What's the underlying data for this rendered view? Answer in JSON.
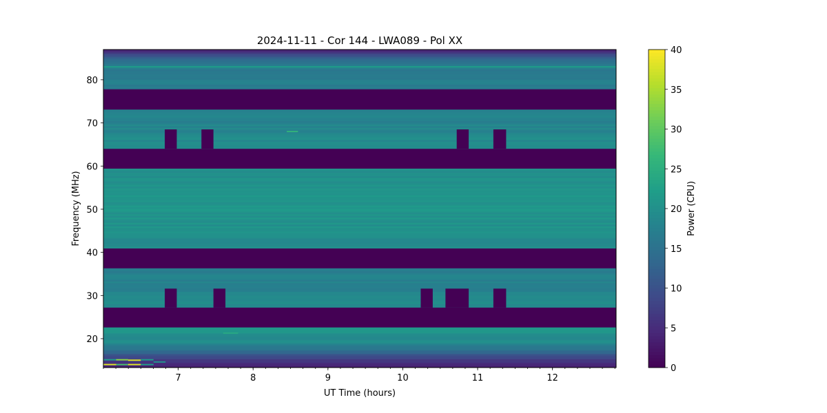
{
  "chart_data": {
    "type": "heatmap",
    "title": "2024-11-11 - Cor 144 - LWA089 - Pol XX",
    "xlabel": "UT Time (hours)",
    "ylabel": "Frequency (MHz)",
    "xlim": [
      6.0,
      12.85
    ],
    "ylim": [
      13.3,
      87.0
    ],
    "xticks": [
      7,
      8,
      9,
      10,
      11,
      12
    ],
    "xtick_labels": [
      "7",
      "8",
      "9",
      "10",
      "11",
      "12"
    ],
    "yticks": [
      20,
      30,
      40,
      50,
      60,
      70,
      80
    ],
    "ytick_labels": [
      "20",
      "30",
      "40",
      "50",
      "60",
      "70",
      "80"
    ],
    "colormap": "viridis",
    "colorbar": {
      "label": "Power (CPU)",
      "range": [
        0,
        40
      ],
      "ticks": [
        0,
        5,
        10,
        15,
        20,
        25,
        30,
        35,
        40
      ],
      "tick_labels": [
        "0",
        "5",
        "10",
        "15",
        "20",
        "25",
        "30",
        "35",
        "40"
      ]
    },
    "power_profile": [
      {
        "freq": 13.3,
        "power": 3
      },
      {
        "freq": 15.0,
        "power": 6
      },
      {
        "freq": 17.0,
        "power": 14
      },
      {
        "freq": 19.0,
        "power": 19
      },
      {
        "freq": 22.6,
        "power": 21
      },
      {
        "freq": 27.2,
        "power": 20
      },
      {
        "freq": 31.0,
        "power": 18
      },
      {
        "freq": 36.3,
        "power": 17
      },
      {
        "freq": 41.0,
        "power": 19
      },
      {
        "freq": 50.0,
        "power": 21
      },
      {
        "freq": 59.4,
        "power": 20
      },
      {
        "freq": 64.0,
        "power": 20
      },
      {
        "freq": 70.0,
        "power": 18
      },
      {
        "freq": 73.1,
        "power": 18
      },
      {
        "freq": 77.8,
        "power": 17
      },
      {
        "freq": 82.0,
        "power": 17
      },
      {
        "freq": 84.5,
        "power": 15
      },
      {
        "freq": 86.0,
        "power": 8
      },
      {
        "freq": 87.0,
        "power": 4
      }
    ],
    "masked_regions": [
      {
        "t0": 6.0,
        "t1": 12.85,
        "f0": 73.1,
        "f1": 77.8,
        "power": 0
      },
      {
        "t0": 6.0,
        "t1": 12.85,
        "f0": 59.4,
        "f1": 64.0,
        "power": 0
      },
      {
        "t0": 6.0,
        "t1": 12.85,
        "f0": 36.3,
        "f1": 40.9,
        "power": 0
      },
      {
        "t0": 6.0,
        "t1": 12.85,
        "f0": 22.6,
        "f1": 27.2,
        "power": 0
      },
      {
        "t0": 6.82,
        "t1": 6.98,
        "f0": 64.0,
        "f1": 68.5,
        "power": 0
      },
      {
        "t0": 7.31,
        "t1": 7.47,
        "f0": 64.0,
        "f1": 68.5,
        "power": 0
      },
      {
        "t0": 10.72,
        "t1": 10.88,
        "f0": 64.0,
        "f1": 68.5,
        "power": 0
      },
      {
        "t0": 11.21,
        "t1": 11.38,
        "f0": 64.0,
        "f1": 68.5,
        "power": 0
      },
      {
        "t0": 6.82,
        "t1": 6.98,
        "f0": 27.2,
        "f1": 31.6,
        "power": 0
      },
      {
        "t0": 7.47,
        "t1": 7.63,
        "f0": 27.2,
        "f1": 31.6,
        "power": 0
      },
      {
        "t0": 10.24,
        "t1": 10.4,
        "f0": 27.2,
        "f1": 31.6,
        "power": 0
      },
      {
        "t0": 10.57,
        "t1": 10.88,
        "f0": 27.2,
        "f1": 31.6,
        "power": 0
      },
      {
        "t0": 11.21,
        "t1": 11.38,
        "f0": 27.2,
        "f1": 31.6,
        "power": 0
      }
    ],
    "rfi_features": [
      {
        "t0": 6.0,
        "t1": 6.17,
        "f": 14.0,
        "power": 38
      },
      {
        "t0": 6.17,
        "t1": 6.33,
        "f": 14.0,
        "power": 28
      },
      {
        "t0": 6.33,
        "t1": 6.5,
        "f": 14.0,
        "power": 38
      },
      {
        "t0": 6.5,
        "t1": 6.67,
        "f": 14.0,
        "power": 22
      },
      {
        "t0": 6.0,
        "t1": 6.17,
        "f": 15.1,
        "power": 22
      },
      {
        "t0": 6.17,
        "t1": 6.33,
        "f": 15.1,
        "power": 33
      },
      {
        "t0": 6.33,
        "t1": 6.5,
        "f": 15.0,
        "power": 38
      },
      {
        "t0": 6.5,
        "t1": 6.67,
        "f": 15.1,
        "power": 22
      },
      {
        "t0": 6.67,
        "t1": 6.83,
        "f": 14.6,
        "power": 20
      },
      {
        "t0": 7.6,
        "t1": 7.8,
        "f": 21.3,
        "power": 24
      },
      {
        "t0": 8.45,
        "t1": 8.6,
        "f": 68.0,
        "power": 26
      },
      {
        "t0": 6.0,
        "t1": 12.85,
        "f": 83.0,
        "power": 22
      }
    ]
  }
}
